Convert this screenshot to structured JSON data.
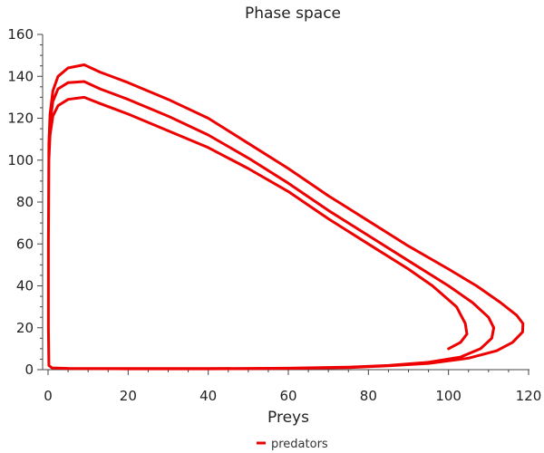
{
  "chart_data": {
    "type": "line",
    "title": "Phase space",
    "xlabel": "Preys",
    "ylabel": "",
    "xlim": [
      0,
      120
    ],
    "ylim": [
      0,
      160
    ],
    "x_ticks": [
      0,
      20,
      40,
      60,
      80,
      100,
      120
    ],
    "y_ticks": [
      0,
      20,
      40,
      60,
      80,
      100,
      120,
      140,
      160
    ],
    "grid": false,
    "legend_position": "bottom-center",
    "series": [
      {
        "name": "predators",
        "color": "#ee0000",
        "points": [
          [
            100,
            10
          ],
          [
            103,
            13
          ],
          [
            104.6,
            17
          ],
          [
            104.2,
            22
          ],
          [
            102,
            30
          ],
          [
            96,
            40
          ],
          [
            90,
            48
          ],
          [
            80,
            60
          ],
          [
            70,
            72
          ],
          [
            60,
            85
          ],
          [
            50,
            96
          ],
          [
            40,
            106
          ],
          [
            30,
            114
          ],
          [
            20,
            122
          ],
          [
            13,
            127
          ],
          [
            9,
            130
          ],
          [
            5,
            129
          ],
          [
            2.5,
            126
          ],
          [
            1.2,
            121
          ],
          [
            0.5,
            112
          ],
          [
            0.2,
            100
          ],
          [
            0.1,
            60
          ],
          [
            0.1,
            20
          ],
          [
            0.2,
            2
          ],
          [
            1,
            0.8
          ],
          [
            5,
            0.6
          ],
          [
            20,
            0.5
          ],
          [
            40,
            0.5
          ],
          [
            60,
            0.7
          ],
          [
            75,
            1.2
          ],
          [
            85,
            2
          ],
          [
            95,
            3.5
          ],
          [
            103,
            6
          ],
          [
            108,
            10
          ],
          [
            110.8,
            15
          ],
          [
            111.3,
            20
          ],
          [
            110,
            25
          ],
          [
            106,
            32
          ],
          [
            100,
            40
          ],
          [
            90,
            52
          ],
          [
            80,
            64
          ],
          [
            70,
            76
          ],
          [
            60,
            89
          ],
          [
            50,
            101
          ],
          [
            40,
            112
          ],
          [
            30,
            121
          ],
          [
            20,
            129
          ],
          [
            13,
            134
          ],
          [
            9,
            137.5
          ],
          [
            5,
            137
          ],
          [
            2.5,
            134
          ],
          [
            1.2,
            128
          ],
          [
            0.5,
            118
          ],
          [
            0.2,
            105
          ],
          [
            0.1,
            60
          ],
          [
            0.1,
            20
          ],
          [
            0.2,
            2
          ],
          [
            1,
            0.8
          ],
          [
            5,
            0.5
          ],
          [
            20,
            0.4
          ],
          [
            40,
            0.4
          ],
          [
            60,
            0.6
          ],
          [
            75,
            1
          ],
          [
            85,
            1.8
          ],
          [
            95,
            3
          ],
          [
            105,
            5.5
          ],
          [
            112,
            9
          ],
          [
            116,
            13
          ],
          [
            118.5,
            18
          ],
          [
            118.6,
            22
          ],
          [
            117,
            26
          ],
          [
            113,
            32
          ],
          [
            107,
            40
          ],
          [
            100,
            48
          ],
          [
            90,
            59
          ],
          [
            80,
            71
          ],
          [
            70,
            83
          ],
          [
            60,
            96
          ],
          [
            50,
            108
          ],
          [
            40,
            120
          ],
          [
            30,
            129
          ],
          [
            20,
            137
          ],
          [
            13,
            142
          ],
          [
            9,
            145.5
          ],
          [
            5,
            144
          ],
          [
            2.5,
            140
          ],
          [
            1.2,
            133
          ],
          [
            0.5,
            122
          ],
          [
            0.2,
            108
          ],
          [
            0.1,
            60
          ],
          [
            0.1,
            20
          ],
          [
            0.2,
            2
          ]
        ]
      }
    ]
  }
}
